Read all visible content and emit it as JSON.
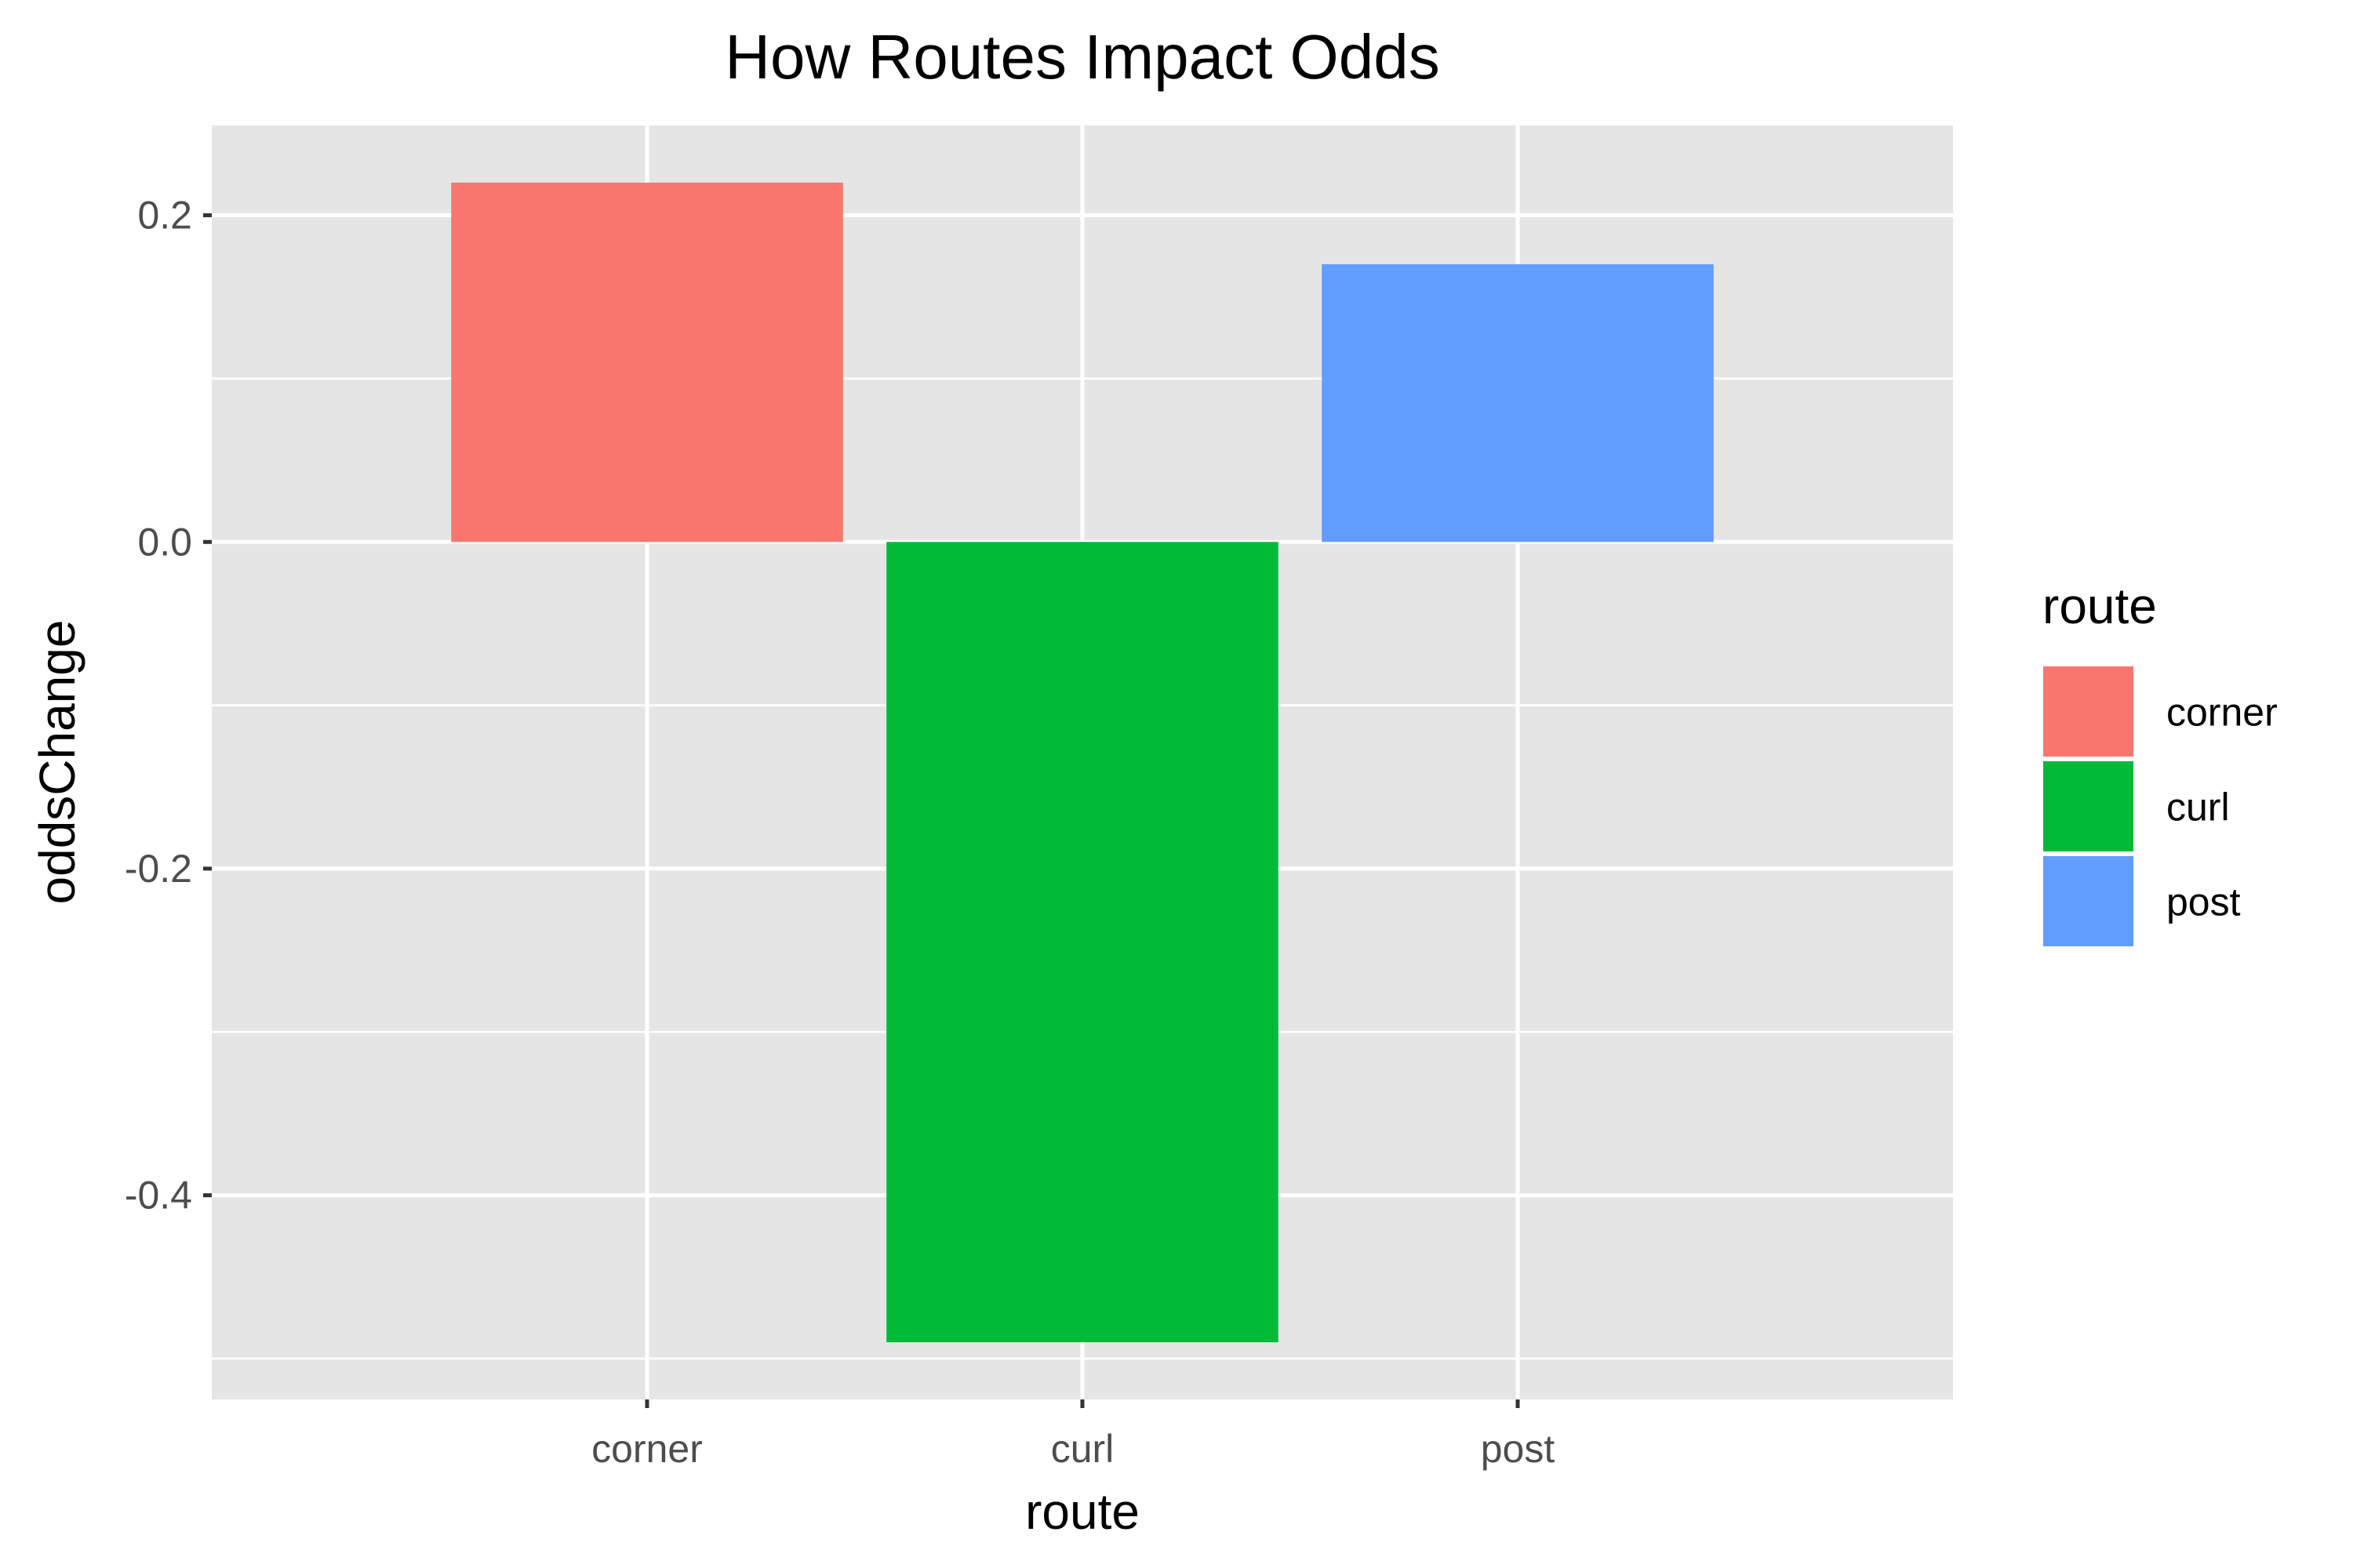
{
  "chart_data": {
    "type": "bar",
    "title": "How Routes Impact Odds",
    "xlabel": "route",
    "ylabel": "oddsChange",
    "categories": [
      "corner",
      "curl",
      "post"
    ],
    "values": [
      0.22,
      -0.49,
      0.17
    ],
    "colors": [
      "#F8766D",
      "#00BA38",
      "#619CFF"
    ],
    "ylim": [
      -0.525,
      0.255
    ],
    "yticks": [
      -0.4,
      -0.2,
      0.0,
      0.2
    ],
    "ytick_labels": [
      "-0.4",
      "-0.2",
      "0.0",
      "0.2"
    ],
    "grid": true,
    "legend": {
      "title": "route",
      "position": "right",
      "items": [
        "corner",
        "curl",
        "post"
      ]
    },
    "panel_background": "#E5E5E5"
  }
}
